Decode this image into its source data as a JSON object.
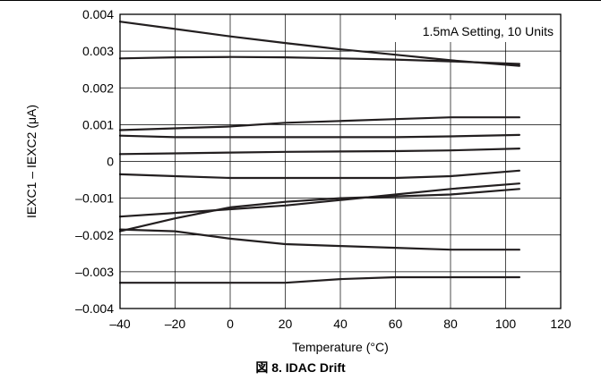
{
  "figure_caption": "図 8. IDAC Drift",
  "chart_data": {
    "type": "line",
    "title": "",
    "xlabel": "Temperature (°C)",
    "ylabel": "IEXC1 – IEXC2 (μA)",
    "xlim": [
      -40,
      120
    ],
    "ylim": [
      -0.004,
      0.004
    ],
    "x_ticks": [
      -40,
      -20,
      0,
      20,
      40,
      60,
      80,
      100,
      120
    ],
    "x_tick_labels": [
      "–40",
      "–20",
      "0",
      "20",
      "40",
      "60",
      "80",
      "100",
      "120"
    ],
    "y_ticks": [
      0.004,
      0.003,
      0.002,
      0.001,
      0,
      -0.001,
      -0.002,
      -0.003,
      -0.004
    ],
    "y_tick_labels": [
      "0.004",
      "0.003",
      "0.002",
      "0.001",
      "0",
      "–0.001",
      "–0.002",
      "–0.003",
      "–0.004"
    ],
    "grid": true,
    "legend": {
      "text": "1.5mA Setting, 10 Units",
      "placement": "top-right"
    },
    "line_color": "#231f20",
    "grid_color": "#000000",
    "series": [
      {
        "x": [
          -40,
          -20,
          0,
          20,
          40,
          60,
          80,
          105
        ],
        "values": [
          0.0038,
          0.0036,
          0.0034,
          0.00322,
          0.00305,
          0.0029,
          0.00275,
          0.0026
        ]
      },
      {
        "x": [
          -40,
          -20,
          0,
          20,
          40,
          60,
          80,
          105
        ],
        "values": [
          0.0028,
          0.00283,
          0.00284,
          0.00283,
          0.0028,
          0.00277,
          0.00272,
          0.00265
        ]
      },
      {
        "x": [
          -40,
          -20,
          0,
          20,
          40,
          60,
          80,
          105
        ],
        "values": [
          0.00085,
          0.0009,
          0.00095,
          0.00105,
          0.0011,
          0.00115,
          0.0012,
          0.0012
        ]
      },
      {
        "x": [
          -40,
          -20,
          0,
          20,
          40,
          60,
          80,
          105
        ],
        "values": [
          0.0007,
          0.00066,
          0.00066,
          0.00066,
          0.00066,
          0.00066,
          0.00068,
          0.00072
        ]
      },
      {
        "x": [
          -40,
          -20,
          0,
          20,
          40,
          60,
          80,
          105
        ],
        "values": [
          0.0002,
          0.00022,
          0.00024,
          0.00026,
          0.00027,
          0.00028,
          0.0003,
          0.00035
        ]
      },
      {
        "x": [
          -40,
          -20,
          0,
          20,
          40,
          60,
          80,
          105
        ],
        "values": [
          -0.00035,
          -0.0004,
          -0.00045,
          -0.00045,
          -0.00045,
          -0.00045,
          -0.0004,
          -0.00025
        ]
      },
      {
        "x": [
          -40,
          -20,
          0,
          20,
          40,
          60,
          80,
          105
        ],
        "values": [
          -0.0015,
          -0.0014,
          -0.0013,
          -0.0012,
          -0.00105,
          -0.0009,
          -0.00075,
          -0.0006
        ]
      },
      {
        "x": [
          -40,
          -20,
          0,
          20,
          40,
          60,
          80,
          105
        ],
        "values": [
          -0.0019,
          -0.00155,
          -0.00125,
          -0.0011,
          -0.001,
          -0.00095,
          -0.0009,
          -0.00075
        ]
      },
      {
        "x": [
          -40,
          -20,
          0,
          20,
          40,
          60,
          80,
          105
        ],
        "values": [
          -0.00185,
          -0.0019,
          -0.0021,
          -0.00225,
          -0.0023,
          -0.00235,
          -0.0024,
          -0.0024
        ]
      },
      {
        "x": [
          -40,
          -20,
          0,
          20,
          40,
          60,
          80,
          105
        ],
        "values": [
          -0.0033,
          -0.0033,
          -0.0033,
          -0.0033,
          -0.0032,
          -0.00315,
          -0.00315,
          -0.00315
        ]
      }
    ]
  }
}
